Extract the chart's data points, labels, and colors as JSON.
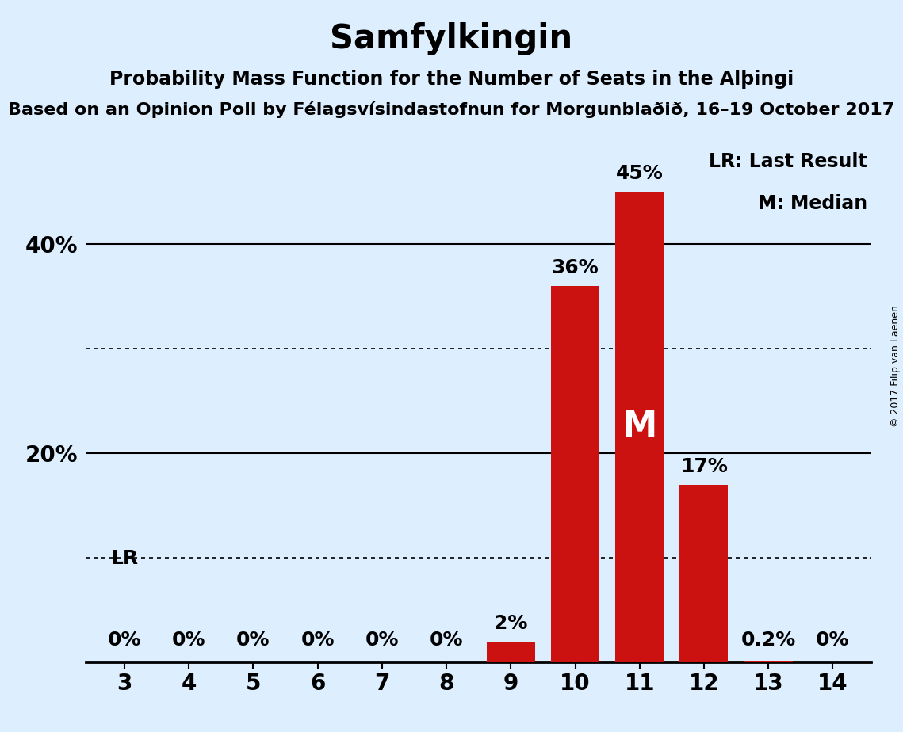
{
  "title": "Samfylkingin",
  "subtitle1": "Probability Mass Function for the Number of Seats in the Alþingi",
  "subtitle2": "Based on an Opinion Poll by Félagsvísindastofnun for Morgunblaðið, 16–19 October 2017",
  "copyright": "© 2017 Filip van Laenen",
  "legend_lr": "LR: Last Result",
  "legend_m": "M: Median",
  "categories": [
    3,
    4,
    5,
    6,
    7,
    8,
    9,
    10,
    11,
    12,
    13,
    14
  ],
  "values": [
    0.0,
    0.0,
    0.0,
    0.0,
    0.0,
    0.0,
    2.0,
    36.0,
    45.0,
    17.0,
    0.2,
    0.0
  ],
  "bar_labels": [
    "0%",
    "0%",
    "0%",
    "0%",
    "0%",
    "0%",
    "2%",
    "36%",
    "45%",
    "17%",
    "0.2%",
    "0%"
  ],
  "bar_color": "#cc1111",
  "background_color": "#ddeeff",
  "median_seat": 11,
  "lr_seat": 3,
  "ylim": [
    0,
    50
  ],
  "solid_gridlines": [
    20,
    40
  ],
  "dotted_gridlines": [
    10,
    30
  ],
  "title_fontsize": 30,
  "subtitle1_fontsize": 17,
  "subtitle2_fontsize": 16,
  "tick_fontsize": 20,
  "bar_label_fontsize": 18,
  "legend_fontsize": 17,
  "lr_fontsize": 18
}
